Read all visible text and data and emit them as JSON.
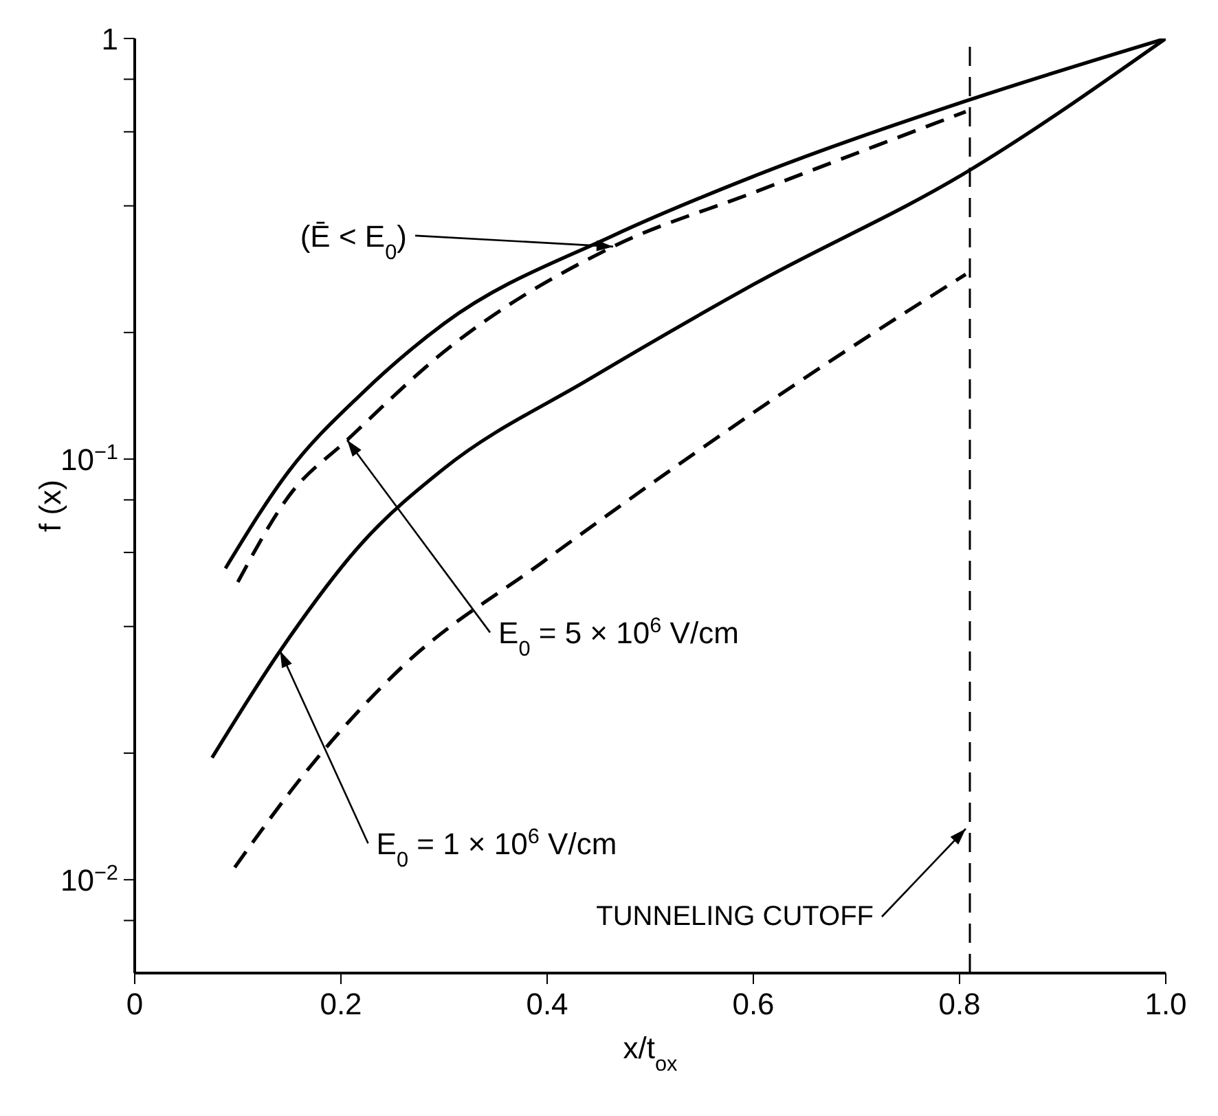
{
  "chart_data": {
    "type": "line",
    "xlabel": "x/t$_{ox}$",
    "ylabel": "f (x)",
    "log": "y",
    "xlim": [
      0,
      1
    ],
    "xticks": [
      0,
      0.2,
      0.4,
      0.6,
      0.8,
      {
        "value": 1,
        "label": "1.0"
      }
    ],
    "ylim": [
      0.006,
      1
    ],
    "yticks": [
      {
        "value": 0.008,
        "label": null
      },
      {
        "value": 0.01,
        "label": "10$^{−2}$"
      },
      {
        "value": 0.02,
        "label": null
      },
      {
        "value": 0.04,
        "label": null
      },
      {
        "value": 0.06,
        "label": null
      },
      {
        "value": 0.08,
        "label": null
      },
      {
        "value": 0.1,
        "label": "10$^{−1}$"
      },
      {
        "value": 0.2,
        "label": null
      },
      {
        "value": 0.4,
        "label": null
      },
      {
        "value": 0.6,
        "label": null
      },
      {
        "value": 0.8,
        "label": null
      },
      1
    ],
    "marker": "none",
    "series": [
      {
        "color": "#000000",
        "line_style": "solid",
        "x": [
          0.088,
          0.15,
          0.22,
          0.3,
          0.464,
          0.6,
          0.806,
          1
        ],
        "values": [
          0.055,
          0.094,
          0.143,
          0.21,
          0.34,
          0.47,
          0.71,
          1
        ]
      },
      {
        "color": "#000000",
        "line_style": "dashed",
        "x": [
          0.1,
          0.15,
          0.206,
          0.3,
          0.464,
          0.6,
          0.806
        ],
        "values": [
          0.051,
          0.082,
          0.111,
          0.18,
          0.32,
          0.43,
          0.67
        ]
      },
      {
        "color": "#000000",
        "line_style": "solid",
        "x": [
          0.075,
          0.141,
          0.22,
          0.3,
          0.441,
          0.6,
          0.806,
          1
        ],
        "values": [
          0.0195,
          0.035,
          0.063,
          0.095,
          0.155,
          0.26,
          0.48,
          1
        ]
      },
      {
        "color": "#000000",
        "line_style": "dashed",
        "x": [
          0.097,
          0.168,
          0.259,
          0.396,
          0.673,
          0.806
        ],
        "values": [
          0.0107,
          0.0183,
          0.032,
          0.057,
          0.17,
          0.275
        ]
      }
    ],
    "ref_lines": [
      {
        "axis": "x",
        "value": 0.81,
        "label": "TUNNELING CUTOFF",
        "line_style": "dashed",
        "color": "#000000"
      }
    ],
    "annotations": [
      {
        "text": "(Ē < E$_{0}$)",
        "x": 0.464,
        "y": 0.32
      },
      {
        "text": "E$_{0}$ = 5 × 10$^{6}$ V/cm",
        "x": 0.206,
        "y": 0.111
      },
      {
        "text": "E$_{0}$ = 1 × 10$^{6}$ V/cm",
        "x": 0.141,
        "y": 0.035
      }
    ]
  }
}
